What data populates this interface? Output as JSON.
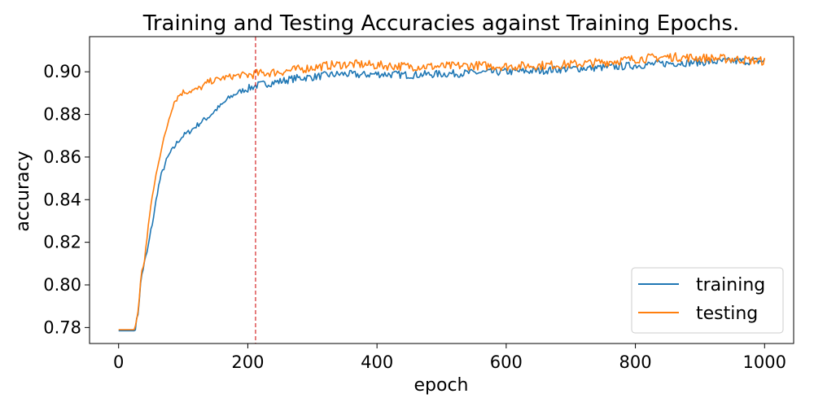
{
  "chart_data": {
    "type": "line",
    "title": "Training and Testing Accuracies against Training Epochs.",
    "xlabel": "epoch",
    "ylabel": "accuracy",
    "xlim": [
      -45,
      1045
    ],
    "ylim": [
      0.7725,
      0.9165
    ],
    "x_ticks": [
      0,
      200,
      400,
      600,
      800,
      1000
    ],
    "y_ticks": [
      0.78,
      0.8,
      0.82,
      0.84,
      0.86,
      0.88,
      0.9
    ],
    "x_tick_labels": [
      "0",
      "200",
      "400",
      "600",
      "800",
      "1000"
    ],
    "y_tick_labels": [
      "0.78",
      "0.80",
      "0.82",
      "0.84",
      "0.86",
      "0.88",
      "0.90"
    ],
    "grid": false,
    "legend_position": "bottom-right",
    "vline": {
      "x": 212,
      "color": "#d62728",
      "style": "dashed"
    },
    "series": [
      {
        "name": "training",
        "color": "#1f77b4",
        "x": [
          0,
          10,
          20,
          25,
          30,
          35,
          40,
          45,
          50,
          55,
          60,
          65,
          70,
          75,
          80,
          85,
          90,
          95,
          100,
          110,
          120,
          130,
          140,
          150,
          160,
          170,
          180,
          190,
          200,
          212,
          230,
          250,
          275,
          300,
          325,
          350,
          375,
          400,
          450,
          500,
          550,
          600,
          650,
          700,
          750,
          800,
          850,
          900,
          950,
          1000
        ],
        "y": [
          0.7785,
          0.7785,
          0.7785,
          0.7785,
          0.7865,
          0.8035,
          0.8105,
          0.8165,
          0.8255,
          0.8335,
          0.8435,
          0.8505,
          0.855,
          0.859,
          0.862,
          0.864,
          0.8665,
          0.8685,
          0.87,
          0.872,
          0.8745,
          0.877,
          0.879,
          0.882,
          0.8845,
          0.8875,
          0.8895,
          0.891,
          0.892,
          0.8935,
          0.8945,
          0.8955,
          0.897,
          0.8975,
          0.8985,
          0.899,
          0.8985,
          0.899,
          0.8985,
          0.899,
          0.8995,
          0.9,
          0.9005,
          0.9015,
          0.902,
          0.903,
          0.904,
          0.9045,
          0.905,
          0.905
        ]
      },
      {
        "name": "testing",
        "color": "#ff7f0e",
        "x": [
          0,
          10,
          20,
          25,
          30,
          35,
          40,
          45,
          50,
          55,
          60,
          65,
          70,
          75,
          80,
          85,
          90,
          95,
          100,
          110,
          120,
          130,
          140,
          150,
          160,
          170,
          180,
          190,
          200,
          212,
          230,
          250,
          275,
          300,
          325,
          350,
          375,
          400,
          450,
          500,
          550,
          600,
          650,
          700,
          750,
          800,
          850,
          900,
          950,
          1000
        ],
        "y": [
          0.779,
          0.779,
          0.779,
          0.779,
          0.7875,
          0.8045,
          0.812,
          0.824,
          0.838,
          0.846,
          0.8555,
          0.8625,
          0.868,
          0.8745,
          0.8805,
          0.8855,
          0.8875,
          0.8895,
          0.8905,
          0.891,
          0.8915,
          0.893,
          0.8955,
          0.896,
          0.897,
          0.8975,
          0.898,
          0.8985,
          0.8985,
          0.899,
          0.8995,
          0.9,
          0.901,
          0.902,
          0.903,
          0.9035,
          0.9035,
          0.903,
          0.9025,
          0.9025,
          0.903,
          0.9025,
          0.903,
          0.9035,
          0.9045,
          0.906,
          0.907,
          0.9065,
          0.906,
          0.905
        ]
      }
    ]
  }
}
